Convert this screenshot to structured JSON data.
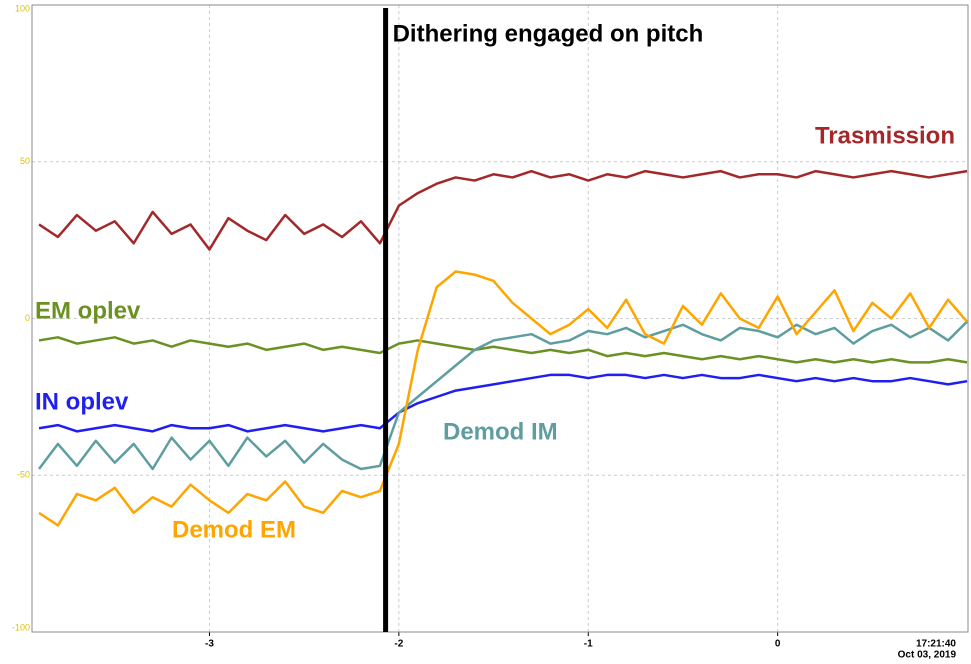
{
  "chart_data": {
    "type": "line",
    "xlim": [
      -3.937,
      1.005
    ],
    "ylim": [
      -100,
      100
    ],
    "xticks": [
      -3,
      -2,
      -1,
      0
    ],
    "yticks": [
      -100,
      -50,
      0,
      50,
      100
    ],
    "grid": true,
    "timestamp": [
      "17:21:40",
      "Oct 03, 2019"
    ],
    "annotation": {
      "text": "Dithering engaged on pitch",
      "x": -2.07
    },
    "x": [
      -3.9,
      -3.8,
      -3.7,
      -3.6,
      -3.5,
      -3.4,
      -3.3,
      -3.2,
      -3.1,
      -3.0,
      -2.9,
      -2.8,
      -2.7,
      -2.6,
      -2.5,
      -2.4,
      -2.3,
      -2.2,
      -2.1,
      -2.0,
      -1.9,
      -1.8,
      -1.7,
      -1.6,
      -1.5,
      -1.4,
      -1.3,
      -1.2,
      -1.1,
      -1.0,
      -0.9,
      -0.8,
      -0.7,
      -0.6,
      -0.5,
      -0.4,
      -0.3,
      -0.2,
      -0.1,
      0.0,
      0.1,
      0.2,
      0.3,
      0.4,
      0.5,
      0.6,
      0.7,
      0.8,
      0.9,
      1.0
    ],
    "series": [
      {
        "name": "Trasmission",
        "color": "#a3282a",
        "values": [
          30,
          26,
          33,
          28,
          31,
          24,
          34,
          27,
          30,
          22,
          32,
          28,
          25,
          33,
          27,
          30,
          26,
          31,
          24,
          36,
          40,
          43,
          45,
          44,
          46,
          45,
          47,
          45,
          46,
          44,
          46,
          45,
          47,
          46,
          45,
          46,
          47,
          45,
          46,
          46,
          45,
          47,
          46,
          45,
          46,
          47,
          46,
          45,
          46,
          47
        ]
      },
      {
        "name": "EM oplev",
        "color": "#6b9123",
        "values": [
          -7,
          -6,
          -8,
          -7,
          -6,
          -8,
          -7,
          -9,
          -7,
          -8,
          -9,
          -8,
          -10,
          -9,
          -8,
          -10,
          -9,
          -10,
          -11,
          -8,
          -7,
          -8,
          -9,
          -10,
          -9,
          -10,
          -11,
          -10,
          -11,
          -10,
          -12,
          -11,
          -12,
          -11,
          -12,
          -13,
          -12,
          -13,
          -12,
          -13,
          -14,
          -13,
          -14,
          -13,
          -14,
          -13,
          -14,
          -14,
          -13,
          -14
        ]
      },
      {
        "name": "IN oplev",
        "color": "#1f1ff0",
        "values": [
          -35,
          -34,
          -36,
          -35,
          -34,
          -35,
          -36,
          -34,
          -35,
          -35,
          -34,
          -36,
          -35,
          -34,
          -35,
          -36,
          -35,
          -34,
          -35,
          -30,
          -27,
          -25,
          -23,
          -22,
          -21,
          -20,
          -19,
          -18,
          -18,
          -19,
          -18,
          -18,
          -19,
          -18,
          -19,
          -18,
          -19,
          -19,
          -18,
          -19,
          -20,
          -19,
          -20,
          -19,
          -20,
          -20,
          -19,
          -20,
          -21,
          -20
        ]
      },
      {
        "name": "Demod IM",
        "color": "#5f9ea0",
        "values": [
          -48,
          -40,
          -47,
          -39,
          -46,
          -40,
          -48,
          -38,
          -45,
          -39,
          -47,
          -38,
          -44,
          -39,
          -46,
          -40,
          -45,
          -48,
          -47,
          -30,
          -25,
          -20,
          -15,
          -10,
          -7,
          -6,
          -5,
          -8,
          -7,
          -4,
          -5,
          -3,
          -6,
          -4,
          -2,
          -5,
          -7,
          -3,
          -4,
          -6,
          -2,
          -5,
          -3,
          -8,
          -4,
          -2,
          -6,
          -3,
          -7,
          -1
        ]
      },
      {
        "name": "Demod EM",
        "color": "#ffa500",
        "values": [
          -62,
          -66,
          -56,
          -58,
          -54,
          -62,
          -57,
          -60,
          -53,
          -58,
          -62,
          -56,
          -58,
          -52,
          -60,
          -62,
          -55,
          -57,
          -55,
          -40,
          -10,
          10,
          15,
          14,
          12,
          5,
          0,
          -5,
          -2,
          3,
          -3,
          6,
          -5,
          -8,
          4,
          -2,
          8,
          0,
          -3,
          7,
          -5,
          2,
          9,
          -4,
          5,
          0,
          8,
          -3,
          6,
          -1
        ]
      }
    ]
  }
}
